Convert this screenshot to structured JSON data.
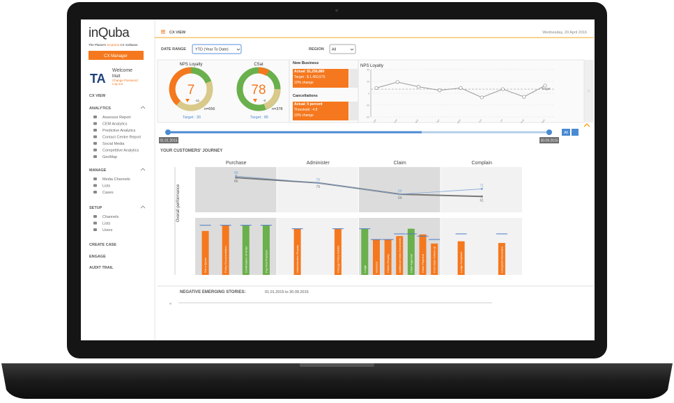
{
  "brand": {
    "name": "inQuba",
    "tagline": [
      "The Planet's ",
      "Smartest",
      " CX Software"
    ],
    "button": "CX Manager"
  },
  "user": {
    "initials": "TA",
    "welcome": "Welcome",
    "name": "Matt",
    "links": [
      "Change Password",
      "Log out"
    ]
  },
  "sidebar": {
    "top": "CX VIEW",
    "sections": [
      {
        "title": "ANALYTICS",
        "items": [
          "Assessor Report",
          "CEM Analytics",
          "Predictive Analytics",
          "Contact Centre Report",
          "Social Media",
          "Competitive Analytics",
          "GeoMap"
        ]
      },
      {
        "title": "MANAGE",
        "items": [
          "Media Channels",
          "Lists",
          "Cases"
        ]
      },
      {
        "title": "SETUP",
        "items": [
          "Channels",
          "Lists",
          "Users"
        ]
      }
    ],
    "links": [
      "CREATE CASE",
      "ENGAGE",
      "AUDIT TRAIL"
    ]
  },
  "header": {
    "title": "CX VIEW",
    "date": "Wednesday, 20 April 2016"
  },
  "filters": {
    "date_range_label": "DATE RANGE",
    "date_range": "YTD (Year To Date)",
    "region_label": "REGION",
    "region": "All"
  },
  "gauges": [
    {
      "title": "NPS Loyalty",
      "value": 7,
      "change": "-11",
      "n": "n=656",
      "target": "Target : 30"
    },
    {
      "title": "CSat",
      "value": 78,
      "change": "-3",
      "n": "n=378",
      "target": "Target : 85"
    }
  ],
  "kpis": [
    {
      "title": "New Business",
      "lines": [
        "Actual: $1,256,880",
        "Target : $ 1,450,575",
        "10% change"
      ]
    },
    {
      "title": "Cancellations",
      "lines": [
        "Actual: 5 percent",
        "Threshold : 4.8",
        "10% change"
      ]
    }
  ],
  "nps_trend": {
    "type": "line",
    "title": "NPS Loyalty",
    "categories": [
      "Jan",
      "Feb",
      "Mar",
      "Apr",
      "May",
      "Jun",
      "Jul",
      "Aug",
      "Sep"
    ],
    "values": [
      9,
      19,
      11,
      5,
      9,
      -7,
      7,
      -6,
      13
    ],
    "color": "#999999",
    "ylim": [
      -40,
      40
    ],
    "yticks": [
      -40,
      -20,
      0,
      20,
      40
    ],
    "target": 7,
    "target_label": "Target",
    "grid": true
  },
  "timeline": {
    "start": "01.01.2015",
    "end": "30.09.2015",
    "button": "All"
  },
  "journey": {
    "title": "YOUR CUSTOMERS' JOURNEY",
    "y_label": "Overall performance",
    "ylim": [
      40,
      100
    ],
    "lines": [
      {
        "color": "#777777",
        "values": [
          86,
          79,
          64,
          61
        ]
      },
      {
        "color": "#7fa7d6",
        "values": [
          88,
          79,
          64,
          71
        ]
      }
    ],
    "bar_ylim": [
      0,
      100
    ],
    "target_color": "#4a7cc8",
    "stages": [
      {
        "name": "Purchase",
        "touchpoints": [
          {
            "label": "Get a Quote",
            "value": 77,
            "target": 87,
            "color": "#f5781e"
          },
          {
            "label": "Policy Documentation",
            "value": 87,
            "target": 87,
            "color": "#f5781e"
          },
          {
            "label": "Confirmation of Order",
            "value": 87,
            "target": 87,
            "color": "#6ab04c"
          },
          {
            "label": "Pay First Premium",
            "value": 87,
            "target": 87,
            "color": "#6ab04c"
          }
        ]
      },
      {
        "name": "Administer",
        "touchpoints": [
          {
            "label": "Administration Enquiry",
            "value": 81,
            "target": 81,
            "color": "#f5781e"
          },
          {
            "label": "Change Policy Details",
            "value": 81,
            "target": 81,
            "color": "#f5781e"
          }
        ]
      },
      {
        "name": "Claim",
        "touchpoints": [
          {
            "label": "Lodge",
            "value": 81,
            "target": 81,
            "color": "#6ab04c"
          },
          {
            "label": "Assessor",
            "value": 62,
            "target": 62,
            "color": "#f5781e"
          },
          {
            "label": "Claims Enquiry",
            "value": 62,
            "target": 62,
            "color": "#f5781e"
          },
          {
            "label": "Additional Claim Documents",
            "value": 68,
            "target": 72,
            "color": "#f5781e"
          },
          {
            "label": "Claim Approval",
            "value": 81,
            "target": 72,
            "color": "#6ab04c"
          },
          {
            "label": "Claim Payment",
            "value": 71,
            "target": 68,
            "color": "#f5781e"
          },
          {
            "label": "Post Claim Follow-up",
            "value": 55,
            "target": 62,
            "color": "#f5781e"
          }
        ]
      },
      {
        "name": "Complain",
        "touchpoints": [
          {
            "label": "Lodge Complaint",
            "value": 59,
            "target": 72,
            "color": "#f5781e"
          },
          {
            "label": "Complaint Resolution",
            "value": 56,
            "target": 72,
            "color": "#f5781e"
          }
        ]
      }
    ]
  },
  "stories": {
    "title": "NEGATIVE EMERGING STORIES:",
    "period": "01.01.2015 to 30.09.2015"
  }
}
